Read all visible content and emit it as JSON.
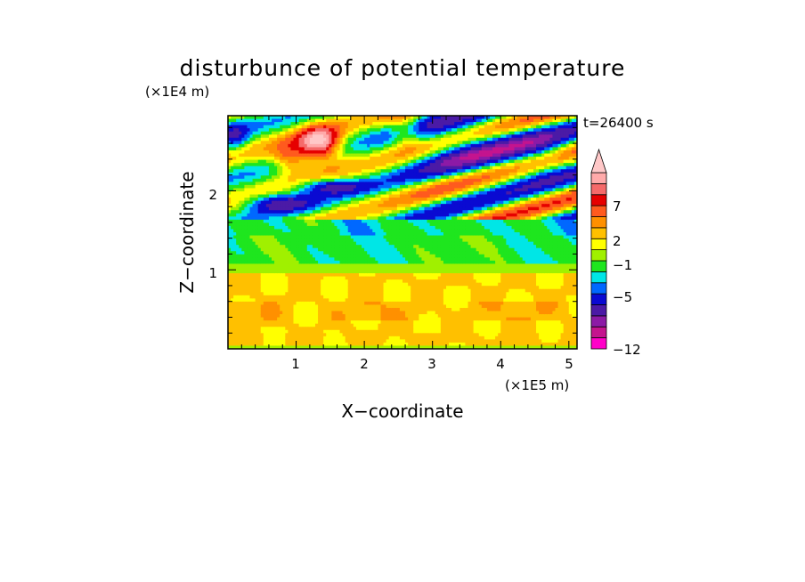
{
  "chart_data": {
    "type": "heatmap",
    "title": "disturbunce of potential temperature",
    "time_label": "t=26400 s",
    "xlabel": "X−coordinate",
    "ylabel": "Z−coordinate",
    "x_unit": "(×1E5 m)",
    "y_unit": "(×1E4 m)",
    "xlim": [
      0,
      5.12
    ],
    "ylim": [
      0,
      2.95
    ],
    "x_ticks": [
      "1",
      "2",
      "3",
      "4",
      "5"
    ],
    "y_ticks": [
      "1",
      "2"
    ],
    "grid": false,
    "legend_position": "right",
    "colorbar": {
      "levels": [
        "−12",
        "−5",
        "−1",
        "2",
        "7"
      ],
      "extend": "max",
      "colors": [
        "#ff00c8",
        "#c4148e",
        "#8c1aa6",
        "#4b1aa6",
        "#0a0ad2",
        "#0068ff",
        "#00e6e6",
        "#1ee61e",
        "#a0f000",
        "#ffff00",
        "#ffc000",
        "#ff9000",
        "#ff5a1e",
        "#e60000",
        "#f56a6a",
        "#ffaaaa",
        "#ffc8c8"
      ]
    },
    "features": [
      {
        "region": "lower layer",
        "z_range": [
          0,
          1.0
        ],
        "value_range": [
          2,
          3
        ],
        "description": "yellow/orange stratified layer"
      },
      {
        "region": "mid layer",
        "z_range": [
          1.0,
          1.6
        ],
        "value_range": [
          -1,
          0
        ],
        "description": "green/cyan band"
      },
      {
        "region": "upper left warm anomaly",
        "x": 1.35,
        "z": 2.6,
        "peak": 7
      },
      {
        "region": "upper right cold waves",
        "x_range": [
          2.5,
          5
        ],
        "z_range": [
          2.0,
          2.95
        ],
        "min": -5
      }
    ]
  }
}
